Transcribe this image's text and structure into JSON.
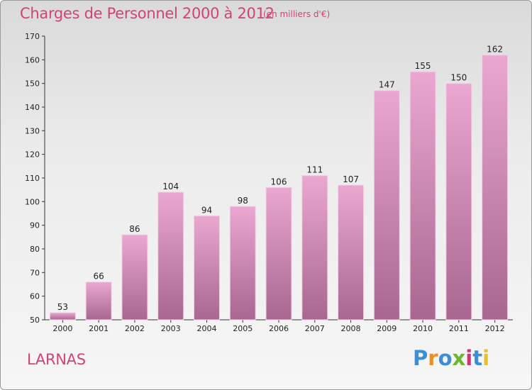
{
  "header": {
    "title": "Charges de Personnel 2000 à 2012",
    "subtitle": "(en milliers d'€)"
  },
  "footer": {
    "town": "LARNAS",
    "logo_letters": [
      "P",
      "r",
      "o",
      "x",
      "i",
      "t",
      "i"
    ],
    "logo_colors": [
      "#3a8fd6",
      "#e8902a",
      "#3a8fd6",
      "#6ab82e",
      "#d6307a",
      "#3a8fd6",
      "#e8c02a"
    ]
  },
  "colors": {
    "title": "#d4407a",
    "bar_top": "#eaa8d0",
    "bar_bottom": "#a8678f",
    "bar_edge": "#f4d0e6"
  },
  "chart_data": {
    "type": "bar",
    "title": "Charges de Personnel 2000 à 2012",
    "subtitle": "(en milliers d'€)",
    "categories": [
      "2000",
      "2001",
      "2002",
      "2003",
      "2004",
      "2005",
      "2006",
      "2007",
      "2008",
      "2009",
      "2010",
      "2011",
      "2012"
    ],
    "values": [
      53,
      66,
      86,
      104,
      94,
      98,
      106,
      111,
      107,
      147,
      155,
      150,
      162
    ],
    "ylim": [
      50,
      170
    ],
    "yticks": [
      50,
      60,
      70,
      80,
      90,
      100,
      110,
      120,
      130,
      140,
      150,
      160,
      170
    ],
    "xlabel": "",
    "ylabel": "",
    "grid": false
  }
}
